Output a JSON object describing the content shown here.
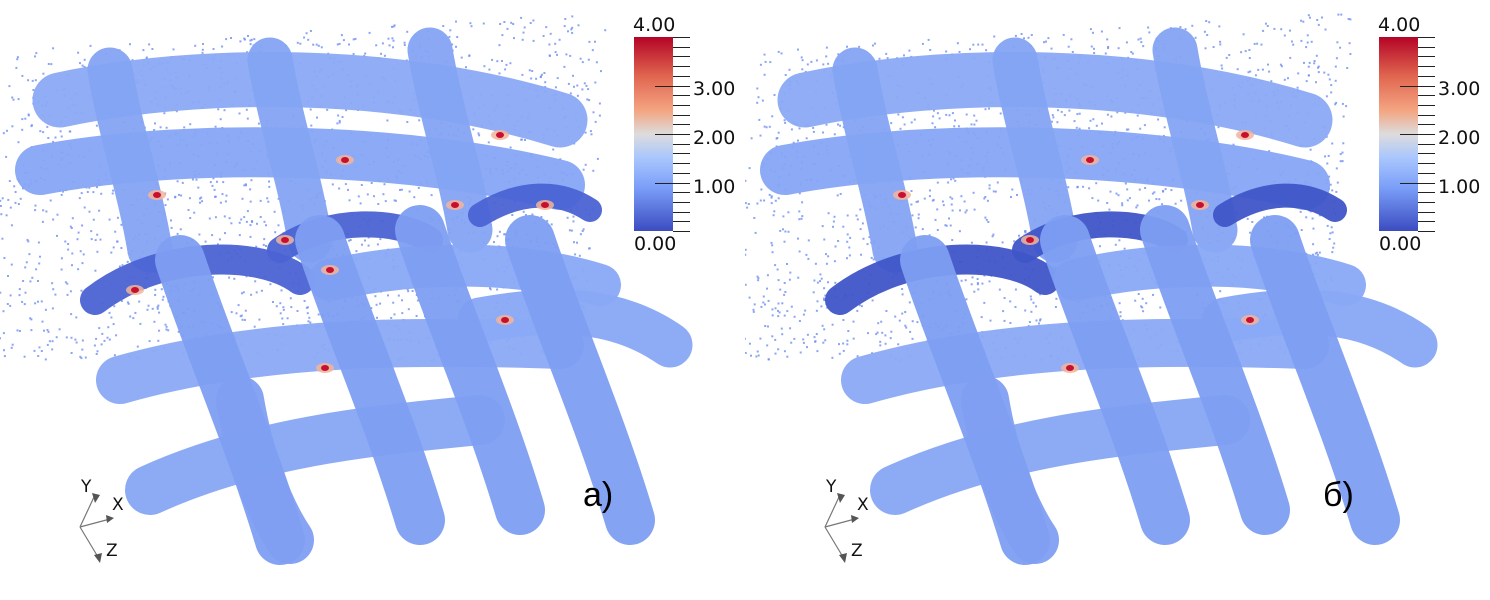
{
  "panels": [
    {
      "label": "a)",
      "id": "a"
    },
    {
      "label": "б)",
      "id": "b"
    }
  ],
  "colorbar": {
    "max_label": "4.00",
    "labels": [
      "3.00",
      "2.00",
      "1.00"
    ],
    "min_label": "0.00",
    "range": [
      0,
      4
    ],
    "colormap": "cool-to-warm",
    "colors": {
      "low": "#3b4cc0",
      "mid": "#dddcdc",
      "high": "#b40426"
    }
  },
  "axes": {
    "x": "X",
    "y": "Y",
    "z": "Z"
  },
  "colors": {
    "fabric": "#85a6f4",
    "fabric_dark": "#4a64d6",
    "hot": "#c8102e"
  }
}
